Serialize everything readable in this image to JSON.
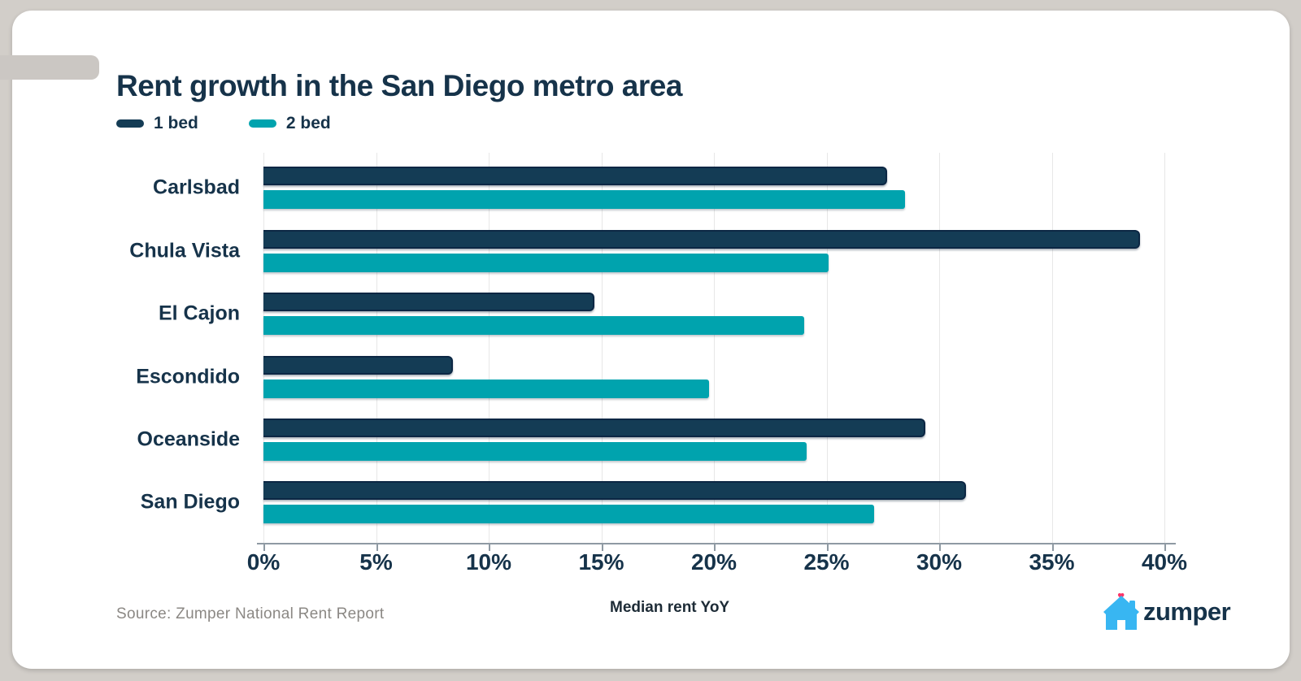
{
  "title": "Rent growth in the San Diego metro area",
  "legend": {
    "items": [
      {
        "label": "1 bed",
        "color": "#143c55"
      },
      {
        "label": "2 bed",
        "color": "#00a3ae"
      }
    ]
  },
  "chart_data": {
    "type": "bar",
    "orientation": "horizontal",
    "title": "Rent growth in the San Diego metro area",
    "categories": [
      "Carlsbad",
      "Chula Vista",
      "El Cajon",
      "Escondido",
      "Oceanside",
      "San Diego"
    ],
    "series": [
      {
        "name": "1 bed",
        "color": "#143c55",
        "values": [
          27.7,
          38.9,
          14.7,
          8.4,
          29.4,
          31.2
        ]
      },
      {
        "name": "2 bed",
        "color": "#00a3ae",
        "values": [
          28.5,
          25.1,
          24.0,
          19.8,
          24.1,
          27.1
        ]
      }
    ],
    "xlabel": "Median rent YoY",
    "ylabel": "",
    "xlim": [
      0,
      40
    ],
    "x_tick_step": 5,
    "x_tick_labels": [
      "0%",
      "5%",
      "10%",
      "15%",
      "20%",
      "25%",
      "30%",
      "35%",
      "40%"
    ],
    "grid": "vertical",
    "legend_position": "top-left"
  },
  "footer": {
    "source": "Source: Zumper National Rent Report",
    "brand": "zumper"
  },
  "colors": {
    "background": "#d2cec9",
    "card": "#ffffff",
    "navy": "#143c55",
    "teal": "#00a3ae",
    "text_navy": "#16334a",
    "gridline": "#e7e7e7",
    "axis": "#8f9aa3",
    "source_text": "#8b8884",
    "logo_blue": "#38b6f2",
    "logo_heart": "#fb3569"
  }
}
